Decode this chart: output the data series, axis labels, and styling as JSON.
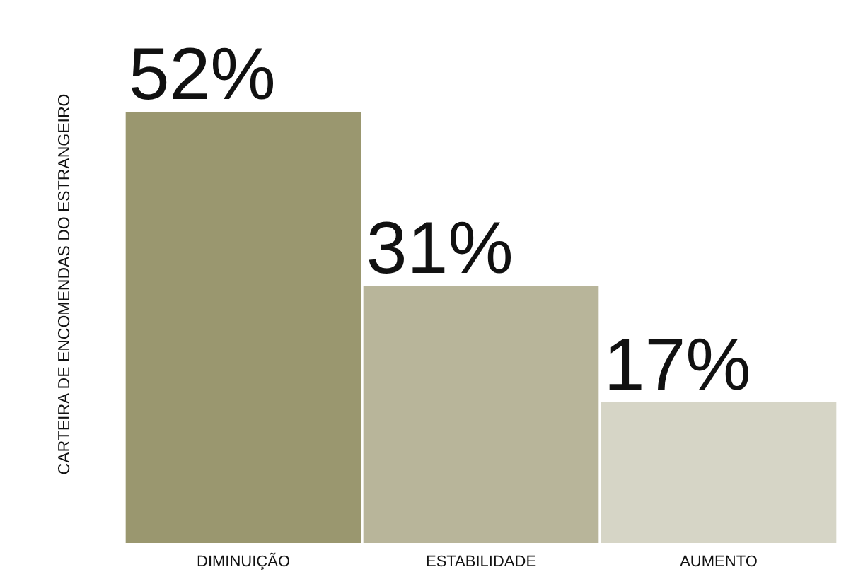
{
  "chart_data": {
    "type": "bar",
    "ylabel": "CARTEIRA DE ENCOMENDAS DO ESTRANGEIRO",
    "categories": [
      "DIMINUIÇÃO",
      "ESTABILIDADE",
      "AUMENTO"
    ],
    "values": [
      52,
      31,
      17
    ],
    "colors": [
      "#9a976f",
      "#b8b59a",
      "#d6d5c6"
    ],
    "value_labels": [
      "52%",
      "31%",
      "17%"
    ]
  }
}
